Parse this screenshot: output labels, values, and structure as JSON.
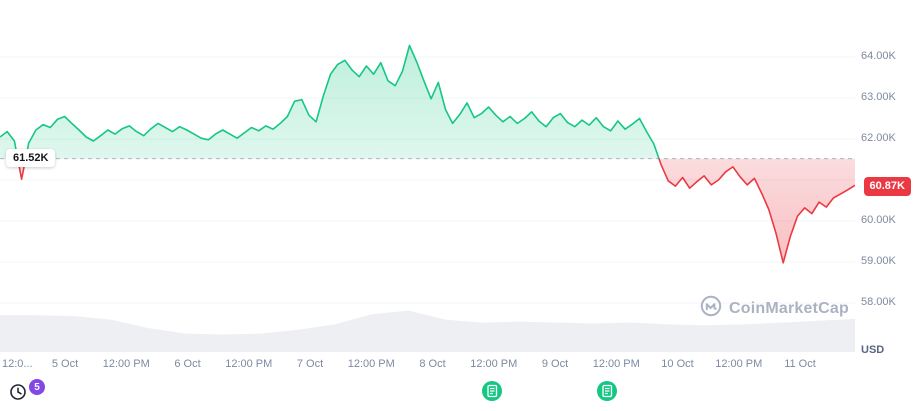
{
  "chart_data": {
    "type": "line",
    "unit": "USD",
    "baseline_value": 61.52,
    "baseline_label": "61.52K",
    "current_price": 60.87,
    "current_price_label": "60.87K",
    "ylim": [
      57.8,
      64.5
    ],
    "grid": "faint-horizontal",
    "legend": "none",
    "y_ticks": [
      {
        "label": "64.00K",
        "value": 64
      },
      {
        "label": "63.00K",
        "value": 63
      },
      {
        "label": "62.00K",
        "value": 62
      },
      {
        "label": "60.00K",
        "value": 60
      },
      {
        "label": "59.00K",
        "value": 59
      },
      {
        "label": "58.00K",
        "value": 58
      }
    ],
    "y_axis_unit": "USD",
    "x_ticks": [
      "12:0...",
      "5 Oct",
      "12:00 PM",
      "6 Oct",
      "12:00 PM",
      "7 Oct",
      "12:00 PM",
      "8 Oct",
      "12:00 PM",
      "9 Oct",
      "12:00 PM",
      "10 Oct",
      "12:00 PM",
      "11 Oct"
    ],
    "values": [
      62.05,
      62.18,
      61.95,
      61.02,
      61.9,
      62.22,
      62.35,
      62.28,
      62.48,
      62.55,
      62.38,
      62.22,
      62.05,
      61.95,
      62.08,
      62.22,
      62.12,
      62.25,
      62.32,
      62.18,
      62.08,
      62.25,
      62.38,
      62.28,
      62.18,
      62.3,
      62.22,
      62.12,
      62.02,
      61.98,
      62.12,
      62.22,
      62.12,
      62.02,
      62.15,
      62.28,
      62.2,
      62.32,
      62.24,
      62.38,
      62.55,
      62.92,
      62.96,
      62.58,
      62.42,
      63.05,
      63.58,
      63.82,
      63.92,
      63.68,
      63.52,
      63.78,
      63.58,
      63.86,
      63.42,
      63.3,
      63.65,
      64.28,
      63.88,
      63.42,
      62.98,
      63.38,
      62.72,
      62.38,
      62.6,
      62.88,
      62.52,
      62.62,
      62.78,
      62.58,
      62.42,
      62.55,
      62.38,
      62.5,
      62.66,
      62.44,
      62.3,
      62.52,
      62.62,
      62.4,
      62.3,
      62.46,
      62.34,
      62.52,
      62.3,
      62.2,
      62.44,
      62.24,
      62.36,
      62.5,
      62.18,
      61.88,
      61.38,
      60.98,
      60.85,
      61.06,
      60.8,
      60.96,
      61.1,
      60.88,
      61.0,
      61.2,
      61.32,
      61.08,
      60.88,
      61.04,
      60.68,
      60.28,
      59.7,
      58.98,
      59.62,
      60.12,
      60.32,
      60.18,
      60.46,
      60.34,
      60.56,
      60.66,
      60.76,
      60.87
    ],
    "volume_profile": [
      0.8,
      0.8,
      0.78,
      0.7,
      0.52,
      0.4,
      0.38,
      0.4,
      0.48,
      0.6,
      0.82,
      0.9,
      0.7,
      0.64,
      0.66,
      0.64,
      0.62,
      0.64,
      0.6,
      0.58,
      0.6,
      0.64,
      0.68,
      0.72
    ],
    "event_markers": [
      {
        "x_frac": 0.575
      },
      {
        "x_frac": 0.71
      }
    ],
    "colors": {
      "up_green": "#16c784",
      "down_red": "#ea3943",
      "badge_red": "#ea3943",
      "baseline_dash": "#aab2c0",
      "volume_gray": "#edeff3",
      "axis_text": "#7d8aa0",
      "marker_green": "#16c784",
      "history_badge_purple": "#8247e5",
      "watermark_gray": "#aab3c4"
    }
  },
  "footer": {
    "history_count": "5"
  },
  "watermark": {
    "text": "CoinMarketCap"
  }
}
